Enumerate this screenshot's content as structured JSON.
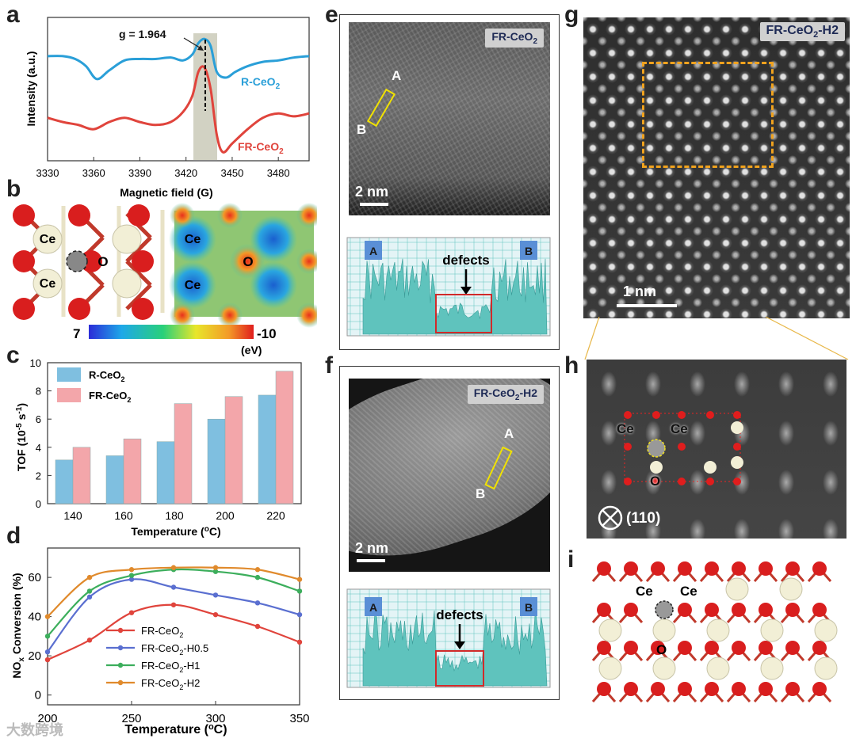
{
  "panels": {
    "a": "a",
    "b": "b",
    "c": "c",
    "d": "d",
    "e": "e",
    "f": "f",
    "g": "g",
    "h": "h",
    "i": "i"
  },
  "colors": {
    "r_ceo2": "#2a9fd8",
    "fr_ceo2": "#e0443c",
    "h05": "#5a6fd0",
    "h1": "#3cae5c",
    "h2": "#e08a2c",
    "bar_r": "#7fbfe0",
    "bar_fr": "#f3a6aa"
  },
  "panel_a": {
    "annotation": "g = 1.964",
    "ylabel": "Intensity (a.u.)",
    "xlabel": "Magnetic field (G)",
    "labels": {
      "r": "R-CeO2",
      "fr": "FR-CeO2"
    }
  },
  "panel_b": {
    "atoms": {
      "ce1": "Ce",
      "ce2": "Ce",
      "o": "O",
      "ce3": "Ce",
      "ce4": "Ce",
      "o2": "O"
    },
    "colorbar": {
      "min": "7",
      "max": "-10",
      "unit": "(eV)"
    }
  },
  "chart_data": [
    {
      "id": "a",
      "type": "line",
      "title": "",
      "xlabel": "Magnetic field (G)",
      "ylabel": "Intensity (a.u.)",
      "xlim": [
        3330,
        3500
      ],
      "xticks": [
        3330,
        3360,
        3390,
        3420,
        3450,
        3480
      ],
      "annotation": "g = 1.964",
      "annotation_x": 3433,
      "series": [
        {
          "name": "R-CeO2",
          "x": [
            3330,
            3340,
            3348,
            3355,
            3362,
            3370,
            3380,
            3390,
            3400,
            3410,
            3418,
            3424,
            3428,
            3432,
            3436,
            3440,
            3446,
            3452,
            3460,
            3470,
            3480,
            3490,
            3500
          ],
          "y": [
            0.73,
            0.73,
            0.71,
            0.66,
            0.57,
            0.63,
            0.7,
            0.71,
            0.71,
            0.72,
            0.7,
            0.74,
            0.82,
            0.85,
            0.8,
            0.62,
            0.58,
            0.62,
            0.66,
            0.69,
            0.7,
            0.72,
            0.73
          ]
        },
        {
          "name": "FR-CeO2",
          "x": [
            3330,
            3340,
            3350,
            3360,
            3370,
            3380,
            3390,
            3400,
            3410,
            3418,
            3424,
            3428,
            3432,
            3436,
            3440,
            3444,
            3450,
            3460,
            3470,
            3480,
            3490,
            3500
          ],
          "y": [
            0.3,
            0.27,
            0.25,
            0.22,
            0.27,
            0.3,
            0.27,
            0.25,
            0.27,
            0.34,
            0.45,
            0.62,
            0.65,
            0.5,
            0.18,
            0.06,
            0.12,
            0.22,
            0.3,
            0.33,
            0.31,
            0.33
          ]
        }
      ]
    },
    {
      "id": "c",
      "type": "bar",
      "xlabel": "Temperature (°C)",
      "ylabel": "TOF (10-5 s-1)",
      "ylim": [
        0,
        10
      ],
      "yticks": [
        0,
        2,
        4,
        6,
        8,
        10
      ],
      "categories": [
        "140",
        "160",
        "180",
        "200",
        "220"
      ],
      "series": [
        {
          "name": "R-CeO2",
          "values": [
            3.1,
            3.4,
            4.4,
            6.0,
            7.7
          ]
        },
        {
          "name": "FR-CeO2",
          "values": [
            4.0,
            4.6,
            7.1,
            7.6,
            9.4
          ]
        }
      ]
    },
    {
      "id": "d",
      "type": "line",
      "xlabel": "Temperature (°C)",
      "ylabel": "NOx Conversion (%)",
      "xlim": [
        200,
        350
      ],
      "ylim": [
        -5,
        75
      ],
      "xticks": [
        200,
        250,
        300,
        350
      ],
      "yticks": [
        0,
        20,
        40,
        60
      ],
      "series": [
        {
          "name": "FR-CeO2",
          "x": [
            200,
            225,
            250,
            275,
            300,
            325,
            350
          ],
          "y": [
            18,
            28,
            42,
            46,
            41,
            35,
            27
          ]
        },
        {
          "name": "FR-CeO2-H0.5",
          "x": [
            200,
            225,
            250,
            275,
            300,
            325,
            350
          ],
          "y": [
            22,
            50,
            59,
            55,
            51,
            47,
            41
          ]
        },
        {
          "name": "FR-CeO2-H1",
          "x": [
            200,
            225,
            250,
            275,
            300,
            325,
            350
          ],
          "y": [
            30,
            53,
            61,
            64,
            63,
            60,
            53
          ]
        },
        {
          "name": "FR-CeO2-H2",
          "x": [
            200,
            225,
            250,
            275,
            300,
            325,
            350
          ],
          "y": [
            40,
            60,
            64,
            65,
            65,
            64,
            59
          ]
        }
      ]
    },
    {
      "id": "e-profile",
      "type": "area",
      "start_label": "A",
      "end_label": "B",
      "annotation": "defects"
    },
    {
      "id": "f-profile",
      "type": "area",
      "start_label": "A",
      "end_label": "B",
      "annotation": "defects"
    }
  ],
  "panel_e": {
    "tag": "FR-CeO2",
    "scale": "2 nm",
    "a": "A",
    "b": "B",
    "defects": "defects",
    "pa": "A",
    "pb": "B"
  },
  "panel_f": {
    "tag": "FR-CeO2-H2",
    "scale": "2 nm",
    "a": "A",
    "b": "B",
    "defects": "defects",
    "pa": "A",
    "pb": "B"
  },
  "panel_g": {
    "tag": "FR-CeO2-H2",
    "scale": "1 nm"
  },
  "panel_h": {
    "ce1": "Ce",
    "ce2": "Ce",
    "o": "O",
    "zone": "(110)"
  },
  "panel_i": {
    "ce1": "Ce",
    "ce2": "Ce",
    "o": "O"
  },
  "watermark": "大数跨境"
}
